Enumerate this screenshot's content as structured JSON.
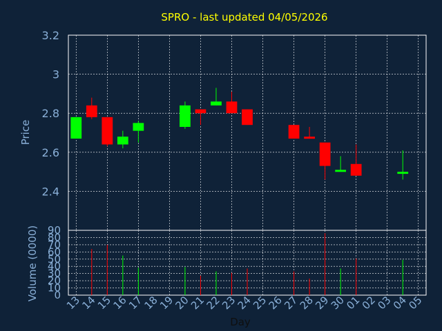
{
  "chart_data": [
    {
      "type": "candlestick",
      "title": "SPRO - last updated 04/05/2026",
      "xlabel": "",
      "ylabel": "Price",
      "ylim": [
        2.2,
        3.2
      ],
      "yticks": [
        "3.2",
        "3",
        "2.8",
        "2.6",
        "2.4"
      ],
      "grid": true,
      "colors": {
        "up": "#00ff00",
        "down": "#ff0000",
        "title": "#ffff00",
        "axis_text": "#8ab0d8",
        "background": "#0f2238",
        "grid": "#ffffff"
      },
      "x": [
        "13",
        "14",
        "15",
        "16",
        "17",
        "18",
        "19",
        "20",
        "21",
        "22",
        "23",
        "24",
        "25",
        "26",
        "27",
        "28",
        "29",
        "30",
        "01",
        "02",
        "03",
        "04",
        "05"
      ],
      "candles": [
        {
          "day": "13",
          "open": 2.67,
          "high": 2.78,
          "low": 2.67,
          "close": 2.78
        },
        {
          "day": "14",
          "open": 2.84,
          "high": 2.88,
          "low": 2.77,
          "close": 2.78
        },
        {
          "day": "15",
          "open": 2.78,
          "high": 2.78,
          "low": 2.63,
          "close": 2.64
        },
        {
          "day": "16",
          "open": 2.64,
          "high": 2.71,
          "low": 2.62,
          "close": 2.68
        },
        {
          "day": "17",
          "open": 2.71,
          "high": 2.76,
          "low": 2.65,
          "close": 2.75
        },
        {
          "day": "20",
          "open": 2.73,
          "high": 2.86,
          "low": 2.72,
          "close": 2.84
        },
        {
          "day": "21",
          "open": 2.82,
          "high": 2.82,
          "low": 2.74,
          "close": 2.8
        },
        {
          "day": "22",
          "open": 2.84,
          "high": 2.93,
          "low": 2.84,
          "close": 2.86
        },
        {
          "day": "23",
          "open": 2.86,
          "high": 2.91,
          "low": 2.8,
          "close": 2.8
        },
        {
          "day": "24",
          "open": 2.82,
          "high": 2.82,
          "low": 2.74,
          "close": 2.74
        },
        {
          "day": "27",
          "open": 2.74,
          "high": 2.74,
          "low": 2.67,
          "close": 2.67
        },
        {
          "day": "28",
          "open": 2.68,
          "high": 2.73,
          "low": 2.67,
          "close": 2.67
        },
        {
          "day": "29",
          "open": 2.65,
          "high": 2.65,
          "low": 2.46,
          "close": 2.53
        },
        {
          "day": "30",
          "open": 2.5,
          "high": 2.58,
          "low": 2.5,
          "close": 2.51
        },
        {
          "day": "01",
          "open": 2.54,
          "high": 2.64,
          "low": 2.48,
          "close": 2.48
        },
        {
          "day": "04",
          "open": 2.49,
          "high": 2.61,
          "low": 2.46,
          "close": 2.5
        }
      ]
    },
    {
      "type": "bar",
      "title": "",
      "xlabel": "Day",
      "ylabel": "Volume (0000)",
      "ylim": [
        0,
        90
      ],
      "yticks": [
        "90",
        "80",
        "70",
        "60",
        "50",
        "40",
        "30",
        "20",
        "10",
        "0"
      ],
      "grid": true,
      "categories": [
        "13",
        "14",
        "15",
        "16",
        "17",
        "18",
        "19",
        "20",
        "21",
        "22",
        "23",
        "24",
        "25",
        "26",
        "27",
        "28",
        "29",
        "30",
        "01",
        "02",
        "03",
        "04",
        "05"
      ],
      "series": [
        {
          "name": "",
          "values": [
            {
              "day": "14",
              "value": 64,
              "color": "down"
            },
            {
              "day": "15",
              "value": 70,
              "color": "down"
            },
            {
              "day": "16",
              "value": 55,
              "color": "up"
            },
            {
              "day": "17",
              "value": 38,
              "color": "up"
            },
            {
              "day": "20",
              "value": 39,
              "color": "up"
            },
            {
              "day": "21",
              "value": 27,
              "color": "down"
            },
            {
              "day": "22",
              "value": 33,
              "color": "up"
            },
            {
              "day": "23",
              "value": 31,
              "color": "down"
            },
            {
              "day": "24",
              "value": 37,
              "color": "down"
            },
            {
              "day": "27",
              "value": 33,
              "color": "down"
            },
            {
              "day": "28",
              "value": 23,
              "color": "down"
            },
            {
              "day": "29",
              "value": 86,
              "color": "down"
            },
            {
              "day": "30",
              "value": 37,
              "color": "up"
            },
            {
              "day": "01",
              "value": 51,
              "color": "down"
            },
            {
              "day": "04",
              "value": 49,
              "color": "up"
            }
          ]
        }
      ]
    }
  ]
}
